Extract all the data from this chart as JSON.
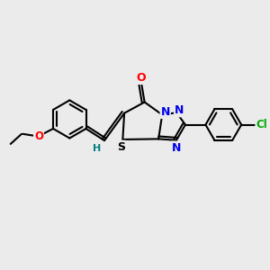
{
  "background_color": "#ebebeb",
  "bond_color": "#000000",
  "atom_colors": {
    "O": "#ff0000",
    "N": "#0000ee",
    "S": "#000000",
    "S_label": "#000000",
    "Cl": "#00aa00",
    "H": "#008080"
  },
  "figsize": [
    3.0,
    3.0
  ],
  "dpi": 100
}
